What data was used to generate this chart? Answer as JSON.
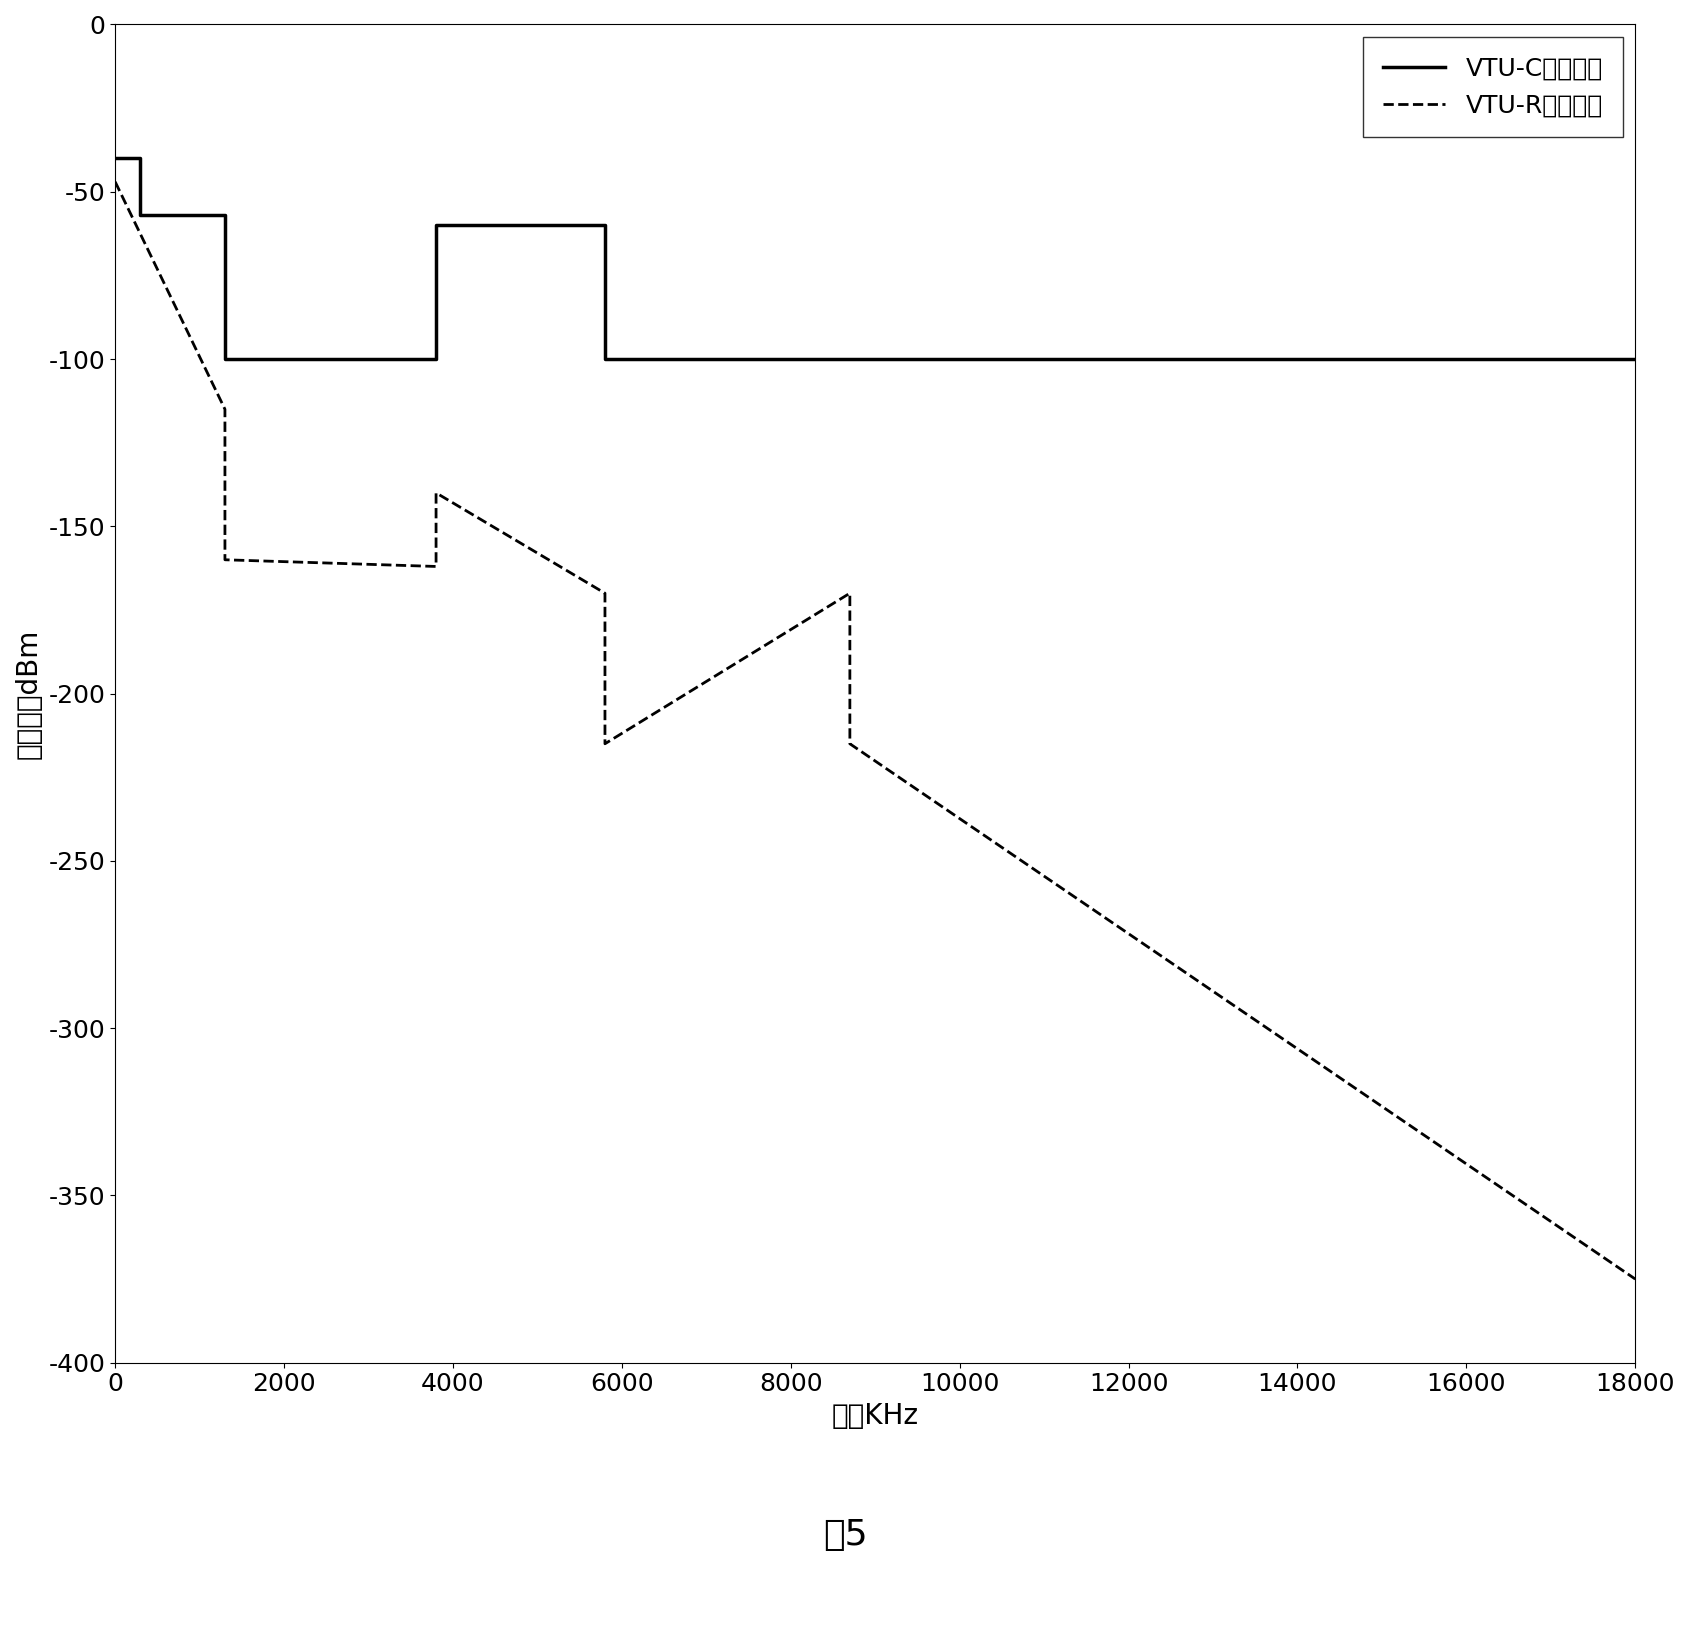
{
  "xlabel": "频率KHz",
  "ylabel": "信号功率dBm",
  "caption": "图5",
  "xlim": [
    0,
    18000
  ],
  "ylim": [
    -400,
    0
  ],
  "xticks": [
    0,
    2000,
    4000,
    6000,
    8000,
    10000,
    12000,
    14000,
    16000,
    18000
  ],
  "yticks": [
    0,
    -50,
    -100,
    -150,
    -200,
    -250,
    -300,
    -350,
    -400
  ],
  "legend_labels": [
    "VTU-C发射信号",
    "VTU-R接收信号"
  ],
  "solid_x": [
    0,
    300,
    300,
    1300,
    1300,
    3800,
    3800,
    5800,
    5800,
    18000
  ],
  "solid_y": [
    -40,
    -40,
    -57,
    -57,
    -100,
    -100,
    -60,
    -60,
    -100,
    -100
  ],
  "dashed_x": [
    0,
    1300,
    1300,
    3800,
    3800,
    5800,
    5800,
    8700,
    8700,
    18000
  ],
  "dashed_y": [
    -47,
    -115,
    -160,
    -162,
    -140,
    -170,
    -215,
    -170,
    -215,
    -375
  ],
  "line_color": "#000000",
  "background_color": "#ffffff",
  "fig_width": 16.9,
  "fig_height": 16.42,
  "dpi": 100,
  "label_fontsize": 20,
  "tick_fontsize": 18,
  "legend_fontsize": 18,
  "caption_fontsize": 26,
  "linewidth_solid": 2.5,
  "linewidth_dashed": 2.0
}
